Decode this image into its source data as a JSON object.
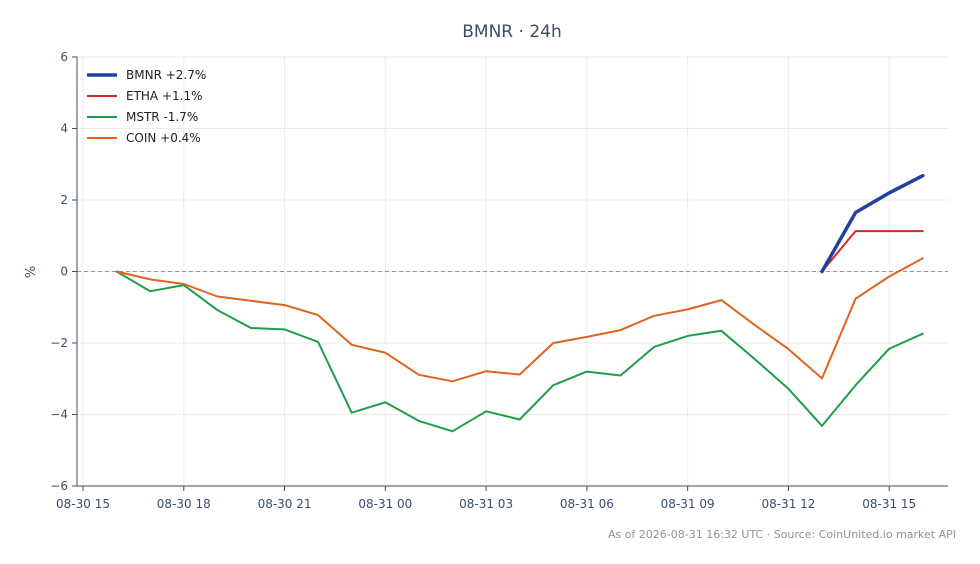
{
  "chart_data": {
    "type": "line",
    "title": "BMNR · 24h",
    "ylabel": "%",
    "xlabel": "",
    "ylim": [
      -6,
      6
    ],
    "yticks": [
      6,
      4,
      2,
      0,
      -2,
      -4,
      -6
    ],
    "ytick_labels": [
      "6",
      "4",
      "2",
      "0",
      "−2",
      "−4",
      "−6"
    ],
    "xlim": [
      "08-30 15:00",
      "08-31 16:45"
    ],
    "xticks": [
      {
        "x": "08-30 15:00",
        "label": "08-30 15"
      },
      {
        "x": "08-30 18:00",
        "label": "08-30 18"
      },
      {
        "x": "08-30 21:00",
        "label": "08-30 21"
      },
      {
        "x": "08-31 00:00",
        "label": "08-31 00"
      },
      {
        "x": "08-31 03:00",
        "label": "08-31 03"
      },
      {
        "x": "08-31 06:00",
        "label": "08-31 06"
      },
      {
        "x": "08-31 09:00",
        "label": "08-31 09"
      },
      {
        "x": "08-31 12:00",
        "label": "08-31 12"
      },
      {
        "x": "08-31 15:00",
        "label": "08-31 15"
      }
    ],
    "grid": true,
    "zero_line": true,
    "legend_position": "top-left",
    "series": [
      {
        "name": "BMNR +2.7%",
        "color": "#2340a0",
        "x": [
          "08-31 13:00",
          "08-31 14:00",
          "08-31 15:00",
          "08-31 16:00"
        ],
        "values": [
          0.0,
          1.65,
          2.2,
          2.68
        ]
      },
      {
        "name": "ETHA +1.1%",
        "color": "#d62728",
        "x": [
          "08-31 13:00",
          "08-31 14:00",
          "08-31 15:00",
          "08-31 16:00"
        ],
        "values": [
          0.0,
          1.13,
          1.13,
          1.13
        ]
      },
      {
        "name": "MSTR -1.7%",
        "color": "#1f9e4a",
        "x": [
          "08-30 16:00",
          "08-30 17:00",
          "08-30 18:00",
          "08-30 19:00",
          "08-30 20:00",
          "08-30 21:00",
          "08-30 22:00",
          "08-30 23:00",
          "08-31 00:00",
          "08-31 01:00",
          "08-31 02:00",
          "08-31 03:00",
          "08-31 04:00",
          "08-31 05:00",
          "08-31 06:00",
          "08-31 07:00",
          "08-31 08:00",
          "08-31 09:00",
          "08-31 10:00",
          "08-31 11:00",
          "08-31 12:00",
          "08-31 13:00",
          "08-31 14:00",
          "08-31 15:00",
          "08-31 16:00"
        ],
        "values": [
          0.0,
          -0.55,
          -0.38,
          -1.08,
          -1.58,
          -1.62,
          -1.97,
          -3.95,
          -3.66,
          -4.18,
          -4.47,
          -3.91,
          -4.14,
          -3.18,
          -2.8,
          -2.91,
          -2.11,
          -1.8,
          -1.66,
          -2.45,
          -3.28,
          -4.32,
          -3.18,
          -2.16,
          -1.74
        ]
      },
      {
        "name": "COIN +0.4%",
        "color": "#e0641e",
        "x": [
          "08-30 16:00",
          "08-30 17:00",
          "08-30 18:00",
          "08-30 19:00",
          "08-30 20:00",
          "08-30 21:00",
          "08-30 22:00",
          "08-30 23:00",
          "08-31 00:00",
          "08-31 01:00",
          "08-31 02:00",
          "08-31 03:00",
          "08-31 04:00",
          "08-31 05:00",
          "08-31 06:00",
          "08-31 07:00",
          "08-31 08:00",
          "08-31 09:00",
          "08-31 10:00",
          "08-31 11:00",
          "08-31 12:00",
          "08-31 13:00",
          "08-31 14:00",
          "08-31 15:00",
          "08-31 16:00"
        ],
        "values": [
          0.0,
          -0.22,
          -0.35,
          -0.7,
          -0.82,
          -0.94,
          -1.22,
          -2.05,
          -2.27,
          -2.89,
          -3.07,
          -2.79,
          -2.88,
          -2.0,
          -1.83,
          -1.64,
          -1.24,
          -1.06,
          -0.8,
          -1.5,
          -2.17,
          -2.99,
          -0.76,
          -0.14,
          0.37
        ]
      }
    ]
  },
  "footer": {
    "text": "As of 2026-08-31 16:32 UTC · Source: CoinUnited.io market API"
  }
}
